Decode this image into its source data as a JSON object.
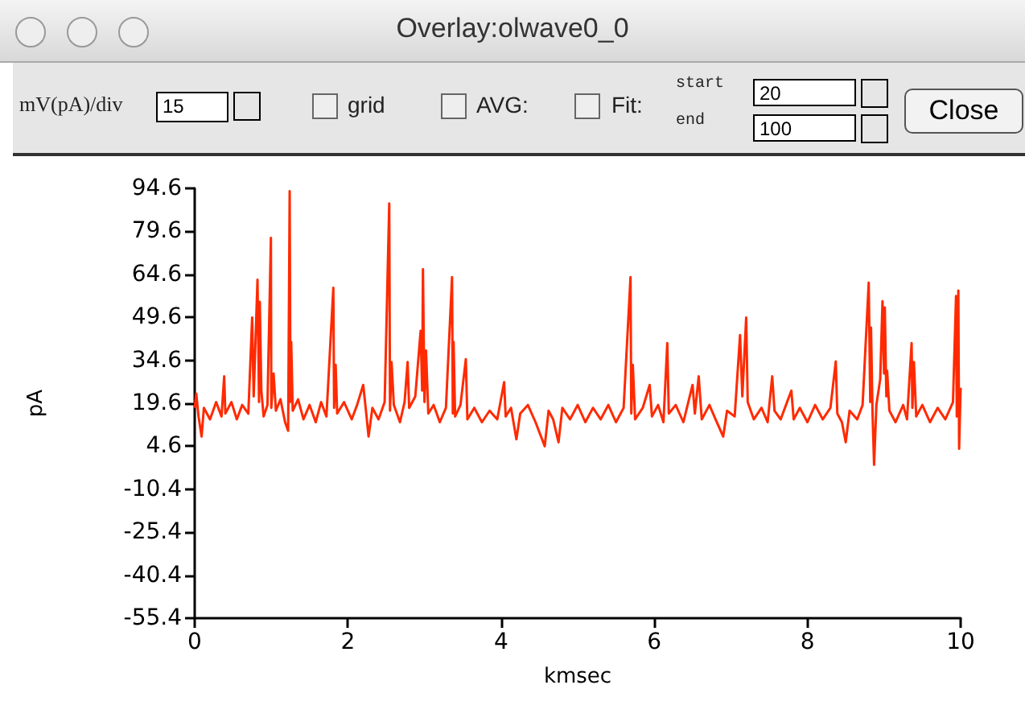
{
  "chart_data": {
    "type": "line",
    "title": "Overlay:olwave0_0",
    "xlabel": "kmsec",
    "ylabel": "pA",
    "annotations": [
      "mV(pA)/div",
      "15",
      "grid",
      "AVG:",
      "Fit:",
      "start",
      "20",
      "end",
      "100",
      "Close"
    ],
    "xlim": [
      0,
      10
    ],
    "xticks": [
      0,
      2,
      4,
      6,
      8,
      10
    ],
    "ylim": [
      -55.4,
      94.6
    ],
    "yticks": [
      94.6,
      79.6,
      64.6,
      49.6,
      34.6,
      19.6,
      4.6,
      -10.4,
      -25.4,
      -40.4,
      -55.4
    ],
    "grid": false,
    "marker": "none",
    "line_style": "solid",
    "series": [
      {
        "color": "#ff2a00",
        "x": [
          0,
          0.02,
          0.05,
          0.09,
          0.12,
          0.2,
          0.28,
          0.35,
          0.385,
          0.4,
          0.48,
          0.55,
          0.62,
          0.7,
          0.75,
          0.77,
          0.82,
          0.84,
          0.85,
          0.87,
          0.9,
          0.95,
          0.995,
          1.0,
          1.03,
          1.06,
          1.12,
          1.18,
          1.22,
          1.24,
          1.25,
          1.26,
          1.28,
          1.35,
          1.42,
          1.5,
          1.58,
          1.65,
          1.72,
          1.81,
          1.82,
          1.84,
          1.86,
          1.95,
          2.05,
          2.12,
          2.2,
          2.24,
          2.27,
          2.32,
          2.4,
          2.48,
          2.54,
          2.55,
          2.57,
          2.6,
          2.68,
          2.74,
          2.78,
          2.8,
          2.88,
          2.95,
          2.97,
          2.98,
          3.0,
          3.02,
          3.05,
          3.12,
          3.2,
          3.28,
          3.36,
          3.37,
          3.38,
          3.4,
          3.47,
          3.54,
          3.56,
          3.65,
          3.75,
          3.85,
          3.95,
          4.04,
          4.06,
          4.13,
          4.2,
          4.25,
          4.35,
          4.45,
          4.57,
          4.62,
          4.68,
          4.75,
          4.8,
          4.9,
          5.0,
          5.1,
          5.2,
          5.3,
          5.4,
          5.5,
          5.6,
          5.69,
          5.7,
          5.72,
          5.75,
          5.85,
          5.94,
          5.97,
          6.05,
          6.12,
          6.17,
          6.19,
          6.28,
          6.38,
          6.5,
          6.53,
          6.58,
          6.62,
          6.72,
          6.8,
          6.9,
          6.95,
          7.05,
          7.12,
          7.15,
          7.2,
          7.22,
          7.3,
          7.4,
          7.48,
          7.54,
          7.57,
          7.65,
          7.72,
          7.79,
          7.82,
          7.9,
          8.0,
          8.1,
          8.2,
          8.3,
          8.37,
          8.39,
          8.45,
          8.5,
          8.55,
          8.65,
          8.72,
          8.8,
          8.82,
          8.83,
          8.85,
          8.87,
          8.9,
          8.95,
          8.98,
          9.0,
          9.01,
          9.03,
          9.04,
          9.07,
          9.15,
          9.25,
          9.3,
          9.36,
          9.37,
          9.39,
          9.42,
          9.5,
          9.6,
          9.7,
          9.8,
          9.9,
          9.94,
          9.95,
          9.97,
          9.98,
          10.0
        ],
        "values": [
          18,
          23,
          15,
          8,
          18,
          14,
          20,
          15,
          29,
          16,
          20,
          14,
          19,
          16,
          49.5,
          22,
          62.7,
          20,
          55,
          24,
          15,
          19,
          77.3,
          18,
          30,
          17,
          21,
          13,
          10,
          93.6,
          20,
          41,
          17,
          21,
          14,
          19,
          13,
          20,
          15,
          59.9,
          18,
          33,
          16,
          20,
          14,
          19,
          26,
          16,
          8,
          18,
          14,
          20,
          89.3,
          17,
          34,
          19,
          13,
          20,
          34,
          18,
          22,
          44.9,
          24,
          66.4,
          20,
          38,
          16,
          19,
          13,
          18,
          63.6,
          16,
          41,
          15,
          19,
          35,
          14,
          18,
          13,
          17,
          14,
          27,
          15,
          18,
          7,
          16,
          19,
          13,
          4.6,
          17,
          14,
          6,
          18,
          14,
          19,
          13,
          18,
          14,
          19,
          13,
          18,
          63.6,
          16,
          33,
          14,
          18,
          26,
          15,
          19,
          13,
          40.6,
          16,
          19,
          13,
          26,
          16,
          29,
          14,
          19,
          14,
          8,
          17,
          15,
          43.4,
          22,
          49.5,
          20,
          14,
          18,
          13,
          29,
          17,
          14,
          19,
          24,
          14,
          18,
          13,
          19,
          14,
          18,
          34.2,
          16,
          13,
          6,
          17,
          14,
          19,
          61.7,
          20,
          46,
          16,
          -1.9,
          19,
          28,
          55.2,
          30,
          53,
          22,
          31,
          17,
          13,
          19,
          14,
          40.6,
          18,
          34,
          15,
          19,
          13,
          18,
          14,
          20,
          57,
          15,
          58.9,
          3.7,
          25
        ]
      }
    ]
  }
}
